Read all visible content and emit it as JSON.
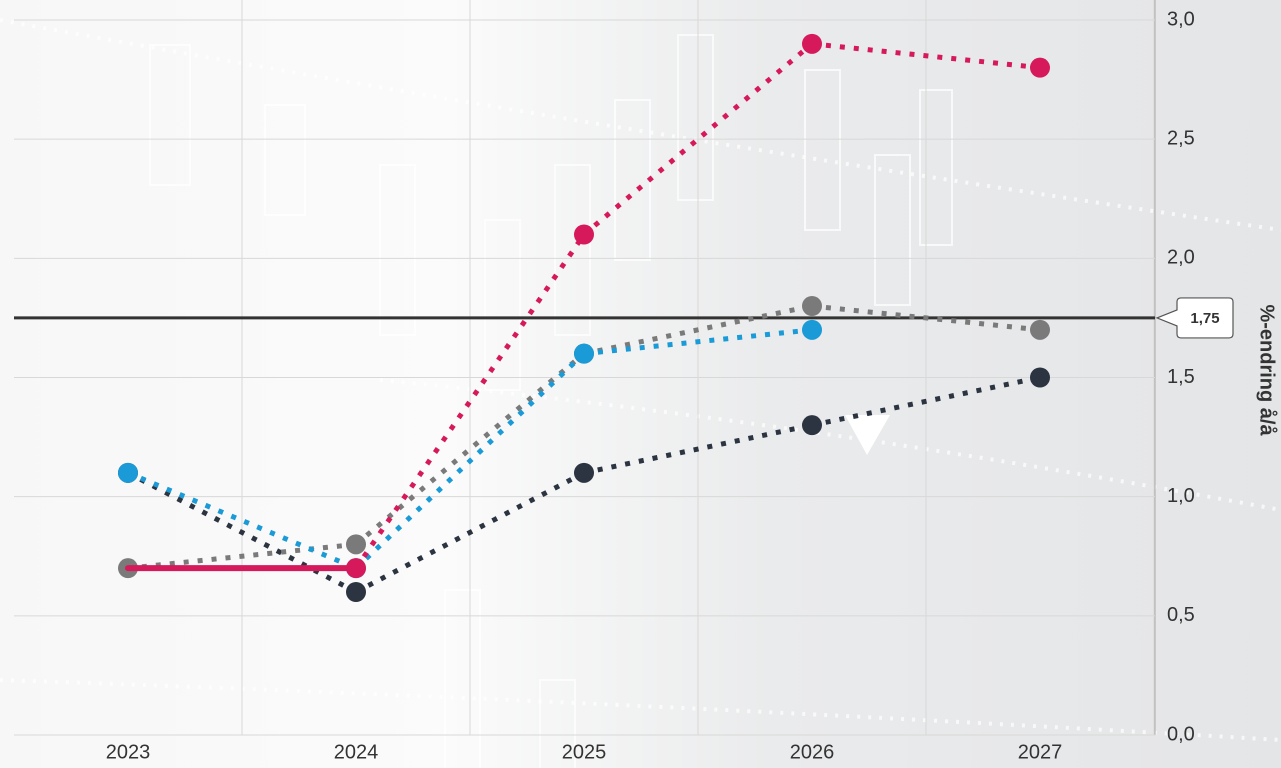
{
  "chart_data": {
    "type": "line",
    "x": [
      "2023",
      "2024",
      "2025",
      "2026",
      "2027"
    ],
    "series": [
      {
        "color": "#2b3440",
        "values": [
          1.1,
          0.6,
          1.1,
          1.3,
          1.5
        ]
      },
      {
        "color": "#7a7a7a",
        "values": [
          0.7,
          0.8,
          1.6,
          1.8,
          1.7
        ]
      },
      {
        "color": "#1a9ad6",
        "values": [
          1.1,
          0.7,
          1.6,
          1.7,
          null
        ]
      },
      {
        "color": "#d6195a",
        "values": [
          0.7,
          0.7,
          2.1,
          2.9,
          2.8
        ],
        "solid_until": 1
      }
    ],
    "ylim": [
      0,
      3
    ],
    "yticks": [
      {
        "value": 0,
        "label": "0,0"
      },
      {
        "value": 0.5,
        "label": "0,5"
      },
      {
        "value": 1,
        "label": "1,0"
      },
      {
        "value": 1.5,
        "label": "1,5"
      },
      {
        "value": 2,
        "label": "2,0"
      },
      {
        "value": 2.5,
        "label": "2,5"
      },
      {
        "value": 3,
        "label": "3,0"
      }
    ],
    "y_axis_side": "right",
    "y_label": "%-endring å/å",
    "reference_line": {
      "value": 1.75,
      "label": "1,75",
      "color": "#333333"
    },
    "grid": true
  }
}
